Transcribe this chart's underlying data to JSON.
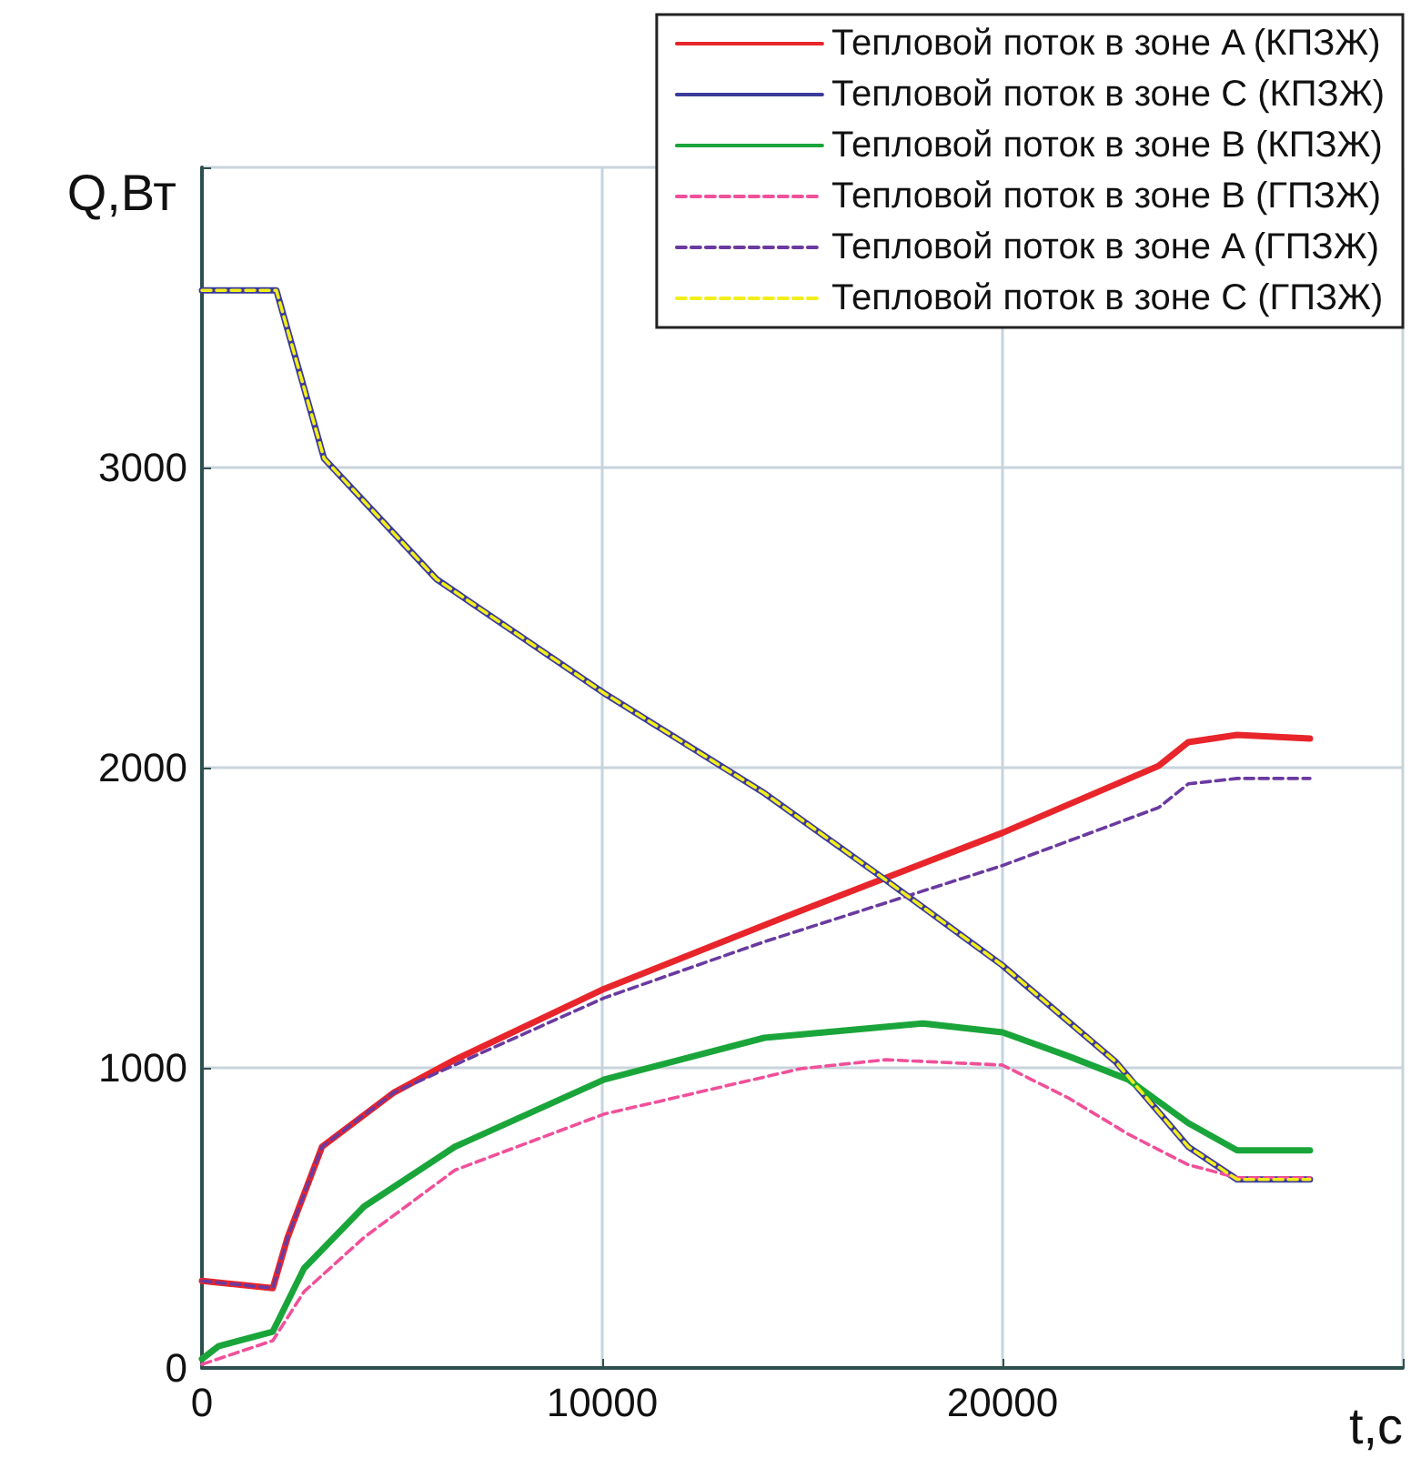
{
  "chart_data": {
    "type": "line",
    "xlabel": "t,c",
    "ylabel": "Q,Вт",
    "xlim": [
      0,
      30000
    ],
    "ylim": [
      0,
      4000
    ],
    "xticks": [
      0,
      10000,
      20000,
      {
        "value": 30000,
        "label": null
      }
    ],
    "yticks": [
      0,
      1000,
      2000,
      3000,
      {
        "value": 4000,
        "label": null
      }
    ],
    "grid": true,
    "legend": "top right",
    "marker": "none",
    "series": [
      {
        "name": "Тепловой поток в зоне A (КПЗЖ)",
        "color": "#e8252b",
        "line_style": "solid",
        "x": [
          0,
          1770,
          2140,
          3000,
          4800,
          6320,
          10050,
          14950,
          20000,
          23900,
          24640,
          25860,
          27680
        ],
        "values": [
          290,
          266,
          435,
          737,
          918,
          1027,
          1263,
          1523,
          1783,
          2006,
          2085,
          2109,
          2097
        ]
      },
      {
        "name": "Тепловой поток в зоне C (КПЗЖ)",
        "color": "#3b3b9c",
        "line_style": "solid",
        "x": [
          0,
          1860,
          3050,
          5860,
          10050,
          14050,
          17090,
          20000,
          22820,
          24640,
          25860,
          27680
        ],
        "values": [
          3590,
          3590,
          3030,
          2628,
          2248,
          1915,
          1625,
          1341,
          1021,
          737,
          628,
          628
        ]
      },
      {
        "name": "Тепловой поток в зоне B (КПЗЖ)",
        "color": "#1aa53a",
        "line_style": "solid",
        "x": [
          0,
          410,
          1770,
          2550,
          4050,
          6320,
          10050,
          14050,
          18000,
          20000,
          21640,
          23140,
          24640,
          25860,
          27680
        ],
        "values": [
          30,
          72,
          121,
          332,
          538,
          737,
          961,
          1100,
          1148,
          1118,
          1039,
          961,
          816,
          725,
          725
        ]
      },
      {
        "name": "Тепловой поток в зоне B (ГПЗЖ)",
        "color": "#f0509a",
        "line_style": "dashed",
        "x": [
          0,
          1770,
          2550,
          4050,
          6320,
          10050,
          14950,
          17090,
          20000,
          21640,
          23140,
          24640,
          25860,
          27680
        ],
        "values": [
          12,
          91,
          254,
          435,
          659,
          846,
          997,
          1027,
          1009,
          900,
          779,
          677,
          634,
          634
        ]
      },
      {
        "name": "Тепловой поток в зоне A (ГПЗЖ)",
        "color": "#6a3aa0",
        "line_style": "dashed",
        "x": [
          0,
          1770,
          2140,
          3000,
          4800,
          6320,
          10050,
          14050,
          20000,
          23900,
          24640,
          25860,
          27680
        ],
        "values": [
          290,
          266,
          435,
          737,
          918,
          1010,
          1233,
          1420,
          1674,
          1867,
          1946,
          1964,
          1964
        ]
      },
      {
        "name": "Тепловой поток в зоне C (ГПЗЖ)",
        "color": "#f2ee1a",
        "line_style": "dashed",
        "x": [
          0,
          1860,
          3050,
          5860,
          10050,
          14050,
          17090,
          20000,
          22820,
          24640,
          25860,
          27680
        ],
        "values": [
          3590,
          3590,
          3030,
          2628,
          2248,
          1915,
          1625,
          1341,
          1021,
          737,
          628,
          628
        ]
      }
    ]
  }
}
